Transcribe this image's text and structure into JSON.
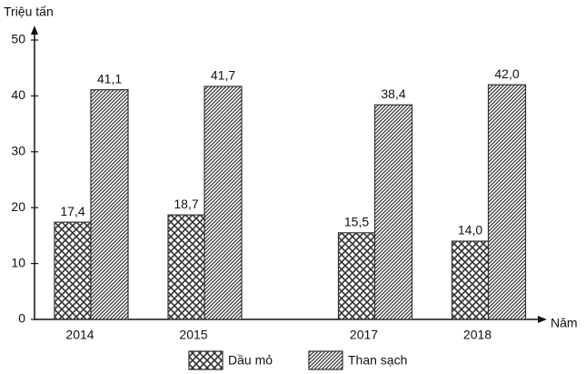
{
  "chart_data": {
    "type": "bar",
    "y_label": "Triệu tấn",
    "x_label": "Năm",
    "categories": [
      "2014",
      "2015",
      null,
      "2017",
      "2018"
    ],
    "series": [
      {
        "name": "Dầu mỏ",
        "color": "#333333",
        "pattern": "crosshatch",
        "values": [
          17.4,
          18.7,
          null,
          15.5,
          14.0
        ],
        "value_labels": [
          "17,4",
          "18,7",
          null,
          "15,5",
          "14,0"
        ]
      },
      {
        "name": "Than sạch",
        "color": "#333333",
        "pattern": "diagonal",
        "values": [
          41.1,
          41.7,
          null,
          38.4,
          42.0
        ],
        "value_labels": [
          "41,1",
          "41,7",
          null,
          "38,4",
          "42,0"
        ]
      }
    ],
    "ylim": [
      0,
      50
    ],
    "yticks": [
      0,
      10,
      20,
      30,
      40,
      50
    ],
    "grid": false
  }
}
